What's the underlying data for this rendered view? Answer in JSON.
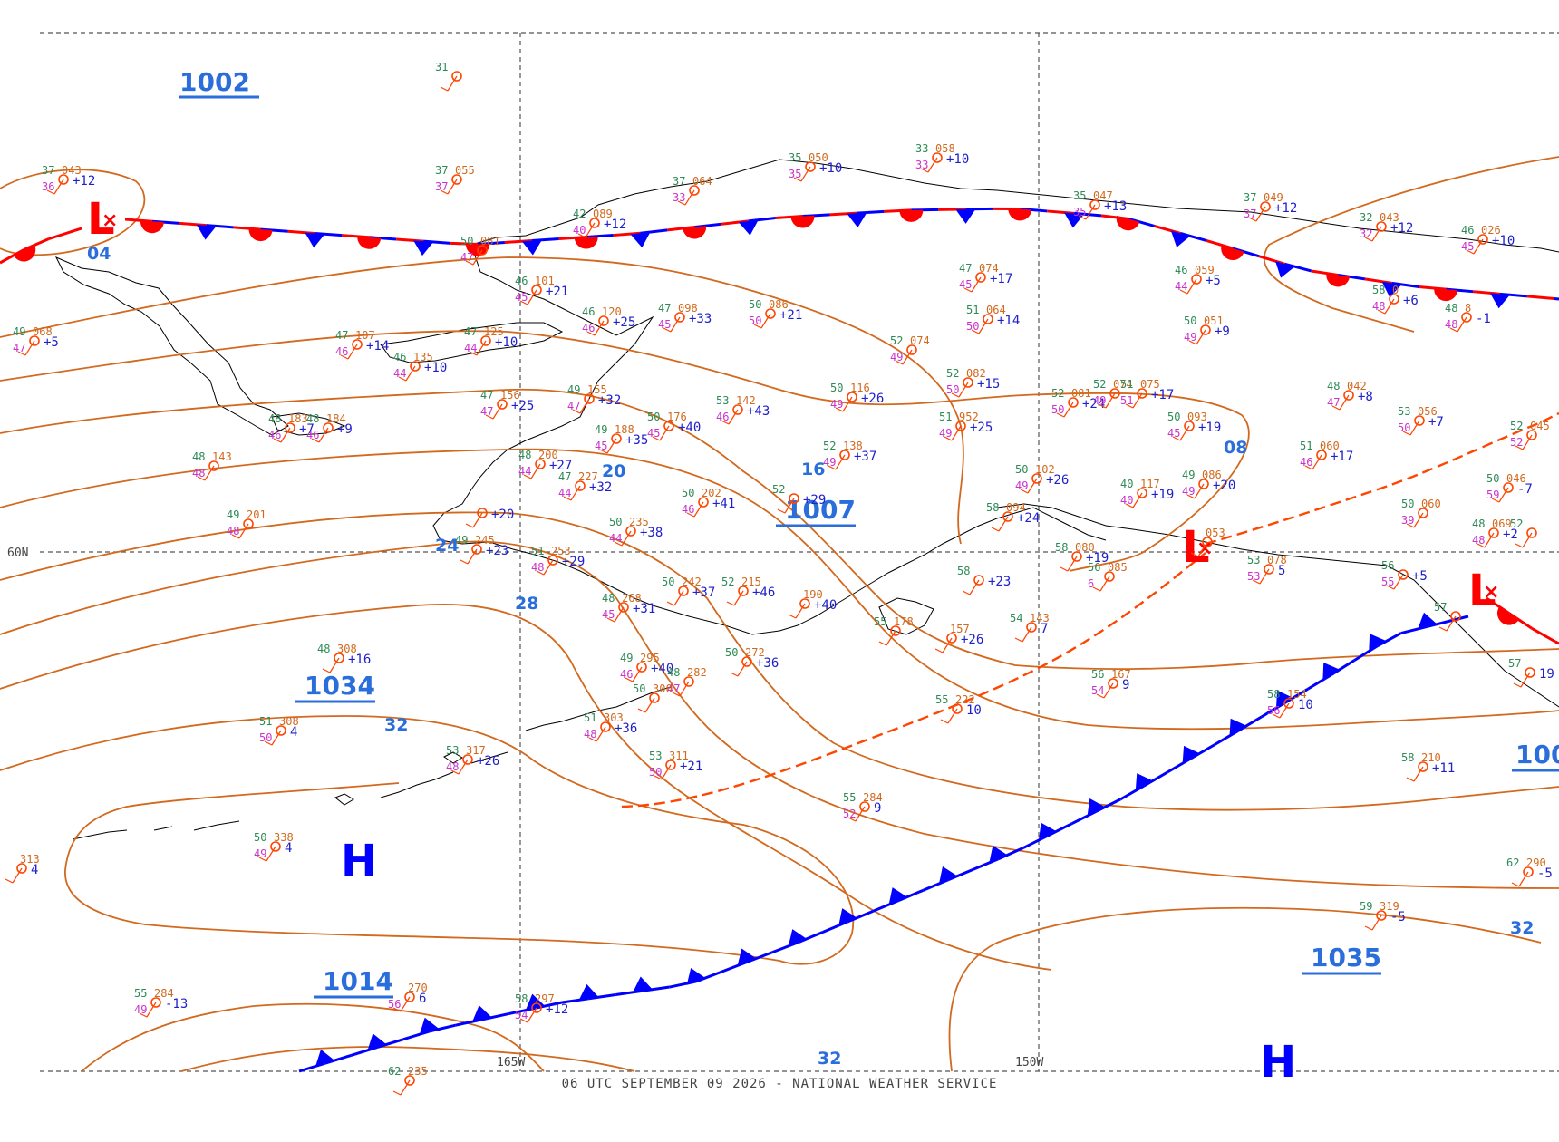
{
  "footer": "06 UTC SEPTEMBER 09 2026 - NATIONAL WEATHER SERVICE",
  "colors": {
    "isobar": "#d2691e",
    "front_blue": "#0000ff",
    "front_red": "#ff0000",
    "trough": "#ff4500",
    "label_blue": "#2a6edb",
    "coast": "#000000",
    "grid": "#555555",
    "obs_temp": "#2e8b57",
    "obs_dew": "#cc33cc",
    "obs_press": "#d2691e",
    "obs_tend": "#2020cc"
  },
  "grid_labels": {
    "lat60": "60N",
    "lon165": "165W",
    "lon150": "150W"
  },
  "pressure_centers": [
    {
      "id": "low-bering-west",
      "symbol": "L",
      "value": "1002"
    },
    {
      "id": "low-alaska-central",
      "symbol": "L",
      "value": "1007"
    },
    {
      "id": "low-alaska-east",
      "symbol": "L",
      "value": "100"
    },
    {
      "id": "high-aleutian",
      "symbol": "H",
      "value": "1034"
    },
    {
      "id": "high-pacific-west",
      "symbol": "H",
      "value": "1014"
    },
    {
      "id": "high-pacific-east",
      "symbol": "H",
      "value": "1035"
    }
  ],
  "isobar_labels": [
    "04",
    "08",
    "16",
    "20",
    "24",
    "28",
    "32",
    "32",
    "32"
  ],
  "stations": [
    {
      "t": "31",
      "d": "",
      "p": "",
      "tend": ""
    },
    {
      "t": "37",
      "d": "36",
      "p": "043",
      "tend": "+12"
    },
    {
      "t": "37",
      "d": "37",
      "p": "055",
      "tend": ""
    },
    {
      "t": "35",
      "d": "35",
      "p": "050",
      "tend": "+10"
    },
    {
      "t": "33",
      "d": "33",
      "p": "058",
      "tend": "+10"
    },
    {
      "t": "37",
      "d": "33",
      "p": "064",
      "tend": ""
    },
    {
      "t": "42",
      "d": "40",
      "p": "089",
      "tend": "+12"
    },
    {
      "t": "50",
      "d": "47",
      "p": "081",
      "tend": ""
    },
    {
      "t": "35",
      "d": "35",
      "p": "047",
      "tend": "+13"
    },
    {
      "t": "37",
      "d": "37",
      "p": "049",
      "tend": "+12"
    },
    {
      "t": "32",
      "d": "32",
      "p": "043",
      "tend": "+12"
    },
    {
      "t": "46",
      "d": "45",
      "p": "026",
      "tend": "+10"
    },
    {
      "t": "49",
      "d": "47",
      "p": "068",
      "tend": "+5"
    },
    {
      "t": "46",
      "d": "45",
      "p": "101",
      "tend": "+21"
    },
    {
      "t": "46",
      "d": "46",
      "p": "120",
      "tend": "+25"
    },
    {
      "t": "47",
      "d": "45",
      "p": "098",
      "tend": "+33"
    },
    {
      "t": "50",
      "d": "50",
      "p": "086",
      "tend": "+21"
    },
    {
      "t": "47",
      "d": "45",
      "p": "074",
      "tend": "+17"
    },
    {
      "t": "46",
      "d": "44",
      "p": "059",
      "tend": "+5"
    },
    {
      "t": "58",
      "d": "48",
      "p": "0",
      "tend": "+6"
    },
    {
      "t": "48",
      "d": "48",
      "p": "8",
      "tend": "-1"
    },
    {
      "t": "51",
      "d": "50",
      "p": "064",
      "tend": "+14"
    },
    {
      "t": "50",
      "d": "49",
      "p": "051",
      "tend": "+9"
    },
    {
      "t": "47",
      "d": "46",
      "p": "107",
      "tend": "+14"
    },
    {
      "t": "47",
      "d": "44",
      "p": "125",
      "tend": "+10"
    },
    {
      "t": "46",
      "d": "44",
      "p": "135",
      "tend": "+10"
    },
    {
      "t": "52",
      "d": "49",
      "p": "074",
      "tend": ""
    },
    {
      "t": "52",
      "d": "50",
      "p": "082",
      "tend": "+15"
    },
    {
      "t": "47",
      "d": "47",
      "p": "156",
      "tend": "+25"
    },
    {
      "t": "49",
      "d": "47",
      "p": "155",
      "tend": "+32"
    },
    {
      "t": "53",
      "d": "46",
      "p": "142",
      "tend": "+43"
    },
    {
      "t": "50",
      "d": "49",
      "p": "116",
      "tend": "+26"
    },
    {
      "t": "52",
      "d": "50",
      "p": "081",
      "tend": "+24"
    },
    {
      "t": "52",
      "d": "49",
      "p": "074",
      "tend": ""
    },
    {
      "t": "51",
      "d": "51",
      "p": "075",
      "tend": "+17"
    },
    {
      "t": "48",
      "d": "47",
      "p": "042",
      "tend": "+8"
    },
    {
      "t": "53",
      "d": "50",
      "p": "056",
      "tend": "+7"
    },
    {
      "t": "48",
      "d": "46",
      "p": "183",
      "tend": "+7"
    },
    {
      "t": "48",
      "d": "46",
      "p": "184",
      "tend": "+9"
    },
    {
      "t": "50",
      "d": "45",
      "p": "176",
      "tend": "+40"
    },
    {
      "t": "49",
      "d": "45",
      "p": "188",
      "tend": "+35"
    },
    {
      "t": "51",
      "d": "49",
      "p": "952",
      "tend": "+25"
    },
    {
      "t": "50",
      "d": "45",
      "p": "093",
      "tend": "+19"
    },
    {
      "t": "52",
      "d": "52",
      "p": "045",
      "tend": ""
    },
    {
      "t": "48",
      "d": "48",
      "p": "143",
      "tend": ""
    },
    {
      "t": "48",
      "d": "44",
      "p": "200",
      "tend": "+27"
    },
    {
      "t": "52",
      "d": "49",
      "p": "138",
      "tend": "+37"
    },
    {
      "t": "51",
      "d": "46",
      "p": "060",
      "tend": "+17"
    },
    {
      "t": "47",
      "d": "44",
      "p": "227",
      "tend": "+32"
    },
    {
      "t": "50",
      "d": "49",
      "p": "102",
      "tend": "+26"
    },
    {
      "t": "40",
      "d": "40",
      "p": "117",
      "tend": "+19"
    },
    {
      "t": "49",
      "d": "49",
      "p": "086",
      "tend": "+20"
    },
    {
      "t": "50",
      "d": "59",
      "p": "046",
      "tend": "-7"
    },
    {
      "t": "49",
      "d": "48",
      "p": "201",
      "tend": ""
    },
    {
      "t": "50",
      "d": "46",
      "p": "202",
      "tend": "+41"
    },
    {
      "t": "52",
      "d": "",
      "p": "",
      "tend": "+29"
    },
    {
      "t": "",
      "d": "",
      "p": "",
      "tend": "+20"
    },
    {
      "t": "50",
      "d": "44",
      "p": "235",
      "tend": "+38"
    },
    {
      "t": "49",
      "d": "",
      "p": "245",
      "tend": "+23"
    },
    {
      "t": "51",
      "d": "48",
      "p": "253",
      "tend": "+29"
    },
    {
      "t": "58",
      "d": "",
      "p": "094",
      "tend": "+24"
    },
    {
      "t": "58",
      "d": "",
      "p": "080",
      "tend": "+19"
    },
    {
      "t": "",
      "d": "",
      "p": "053",
      "tend": ""
    },
    {
      "t": "50",
      "d": "39",
      "p": "060",
      "tend": ""
    },
    {
      "t": "48",
      "d": "48",
      "p": "069",
      "tend": "+2"
    },
    {
      "t": "52",
      "d": "",
      "p": "",
      "tend": ""
    },
    {
      "t": "48",
      "d": "45",
      "p": "268",
      "tend": "+31"
    },
    {
      "t": "50",
      "d": "",
      "p": "242",
      "tend": "+37"
    },
    {
      "t": "52",
      "d": "",
      "p": "215",
      "tend": "+46"
    },
    {
      "t": "",
      "d": "",
      "p": "190",
      "tend": "+40"
    },
    {
      "t": "58",
      "d": "",
      "p": "",
      "tend": "+23"
    },
    {
      "t": "56",
      "d": "6",
      "p": "085",
      "tend": ""
    },
    {
      "t": "53",
      "d": "53",
      "p": "078",
      "tend": "5"
    },
    {
      "t": "56",
      "d": "55",
      "p": "",
      "tend": "+5"
    },
    {
      "t": "57",
      "d": "",
      "p": "",
      "tend": ""
    },
    {
      "t": "48",
      "d": "",
      "p": "308",
      "tend": "+16"
    },
    {
      "t": "55",
      "d": "",
      "p": "178",
      "tend": ""
    },
    {
      "t": "",
      "d": "",
      "p": "157",
      "tend": "+26"
    },
    {
      "t": "54",
      "d": "",
      "p": "143",
      "tend": "7"
    },
    {
      "t": "49",
      "d": "46",
      "p": "295",
      "tend": "+40"
    },
    {
      "t": "48",
      "d": "47",
      "p": "282",
      "tend": ""
    },
    {
      "t": "50",
      "d": "",
      "p": "272",
      "tend": "+36"
    },
    {
      "t": "56",
      "d": "54",
      "p": "167",
      "tend": "9"
    },
    {
      "t": "58",
      "d": "56",
      "p": "154",
      "tend": "10"
    },
    {
      "t": "51",
      "d": "50",
      "p": "308",
      "tend": "4"
    },
    {
      "t": "50",
      "d": "",
      "p": "300",
      "tend": ""
    },
    {
      "t": "51",
      "d": "48",
      "p": "303",
      "tend": "+36"
    },
    {
      "t": "55",
      "d": "",
      "p": "222",
      "tend": "10"
    },
    {
      "t": "57",
      "d": "",
      "p": "",
      "tend": "19"
    },
    {
      "t": "53",
      "d": "48",
      "p": "317",
      "tend": "+26"
    },
    {
      "t": "53",
      "d": "50",
      "p": "311",
      "tend": "+21"
    },
    {
      "t": "58",
      "d": "",
      "p": "210",
      "tend": "+11"
    },
    {
      "t": "55",
      "d": "52",
      "p": "284",
      "tend": "9"
    },
    {
      "t": "50",
      "d": "49",
      "p": "338",
      "tend": "4"
    },
    {
      "t": "62",
      "d": "",
      "p": "290",
      "tend": "-5"
    },
    {
      "t": "59",
      "d": "",
      "p": "319",
      "tend": "-5"
    },
    {
      "t": "",
      "d": "56",
      "p": "270",
      "tend": "6"
    },
    {
      "t": "58",
      "d": "54",
      "p": "297",
      "tend": "+12"
    },
    {
      "t": "55",
      "d": "49",
      "p": "284",
      "tend": "-13"
    },
    {
      "t": "62",
      "d": "",
      "p": "235",
      "tend": ""
    },
    {
      "t": "",
      "d": "",
      "p": "313",
      "tend": "4"
    }
  ]
}
